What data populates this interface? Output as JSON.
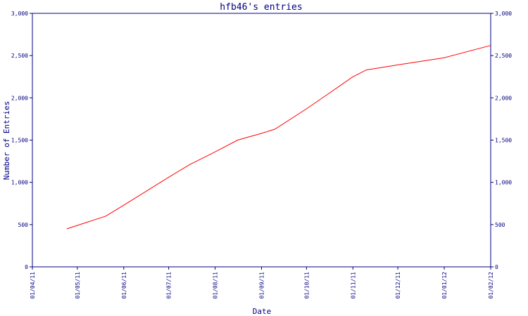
{
  "chart_data": {
    "type": "line",
    "title": "hfb46's entries",
    "xlabel": "Date",
    "ylabel": "Number of Entries",
    "x_ticks": [
      "01/04/11",
      "01/05/11",
      "01/06/11",
      "01/07/11",
      "01/08/11",
      "01/09/11",
      "01/10/11",
      "01/11/11",
      "01/12/11",
      "01/01/12",
      "01/02/12"
    ],
    "y_ticks": [
      "0",
      "500",
      "1,000",
      "1,500",
      "2,000",
      "2,500",
      "3,000"
    ],
    "y_right_ticks": [
      "0",
      "500",
      "1,000",
      "1,500",
      "2,000",
      "2,500",
      "3,000"
    ],
    "ylim": [
      0,
      3000
    ],
    "xlim": [
      "2011-04-01",
      "2012-02-01"
    ],
    "grid": false,
    "colors": {
      "line": "#ff0000",
      "axis": "#000080",
      "text": "#000080"
    },
    "series": [
      {
        "x": [
          "2011-04-24",
          "2011-05-01",
          "2011-05-20",
          "2011-06-01",
          "2011-07-01",
          "2011-07-15",
          "2011-08-01",
          "2011-08-16",
          "2011-09-01",
          "2011-09-10",
          "2011-10-01",
          "2011-10-15",
          "2011-11-01",
          "2011-11-10",
          "2011-12-01",
          "2012-01-01",
          "2012-02-01"
        ],
        "y": [
          450,
          490,
          600,
          730,
          1060,
          1210,
          1360,
          1500,
          1580,
          1630,
          1870,
          2040,
          2250,
          2330,
          2390,
          2475,
          2620
        ]
      }
    ]
  }
}
